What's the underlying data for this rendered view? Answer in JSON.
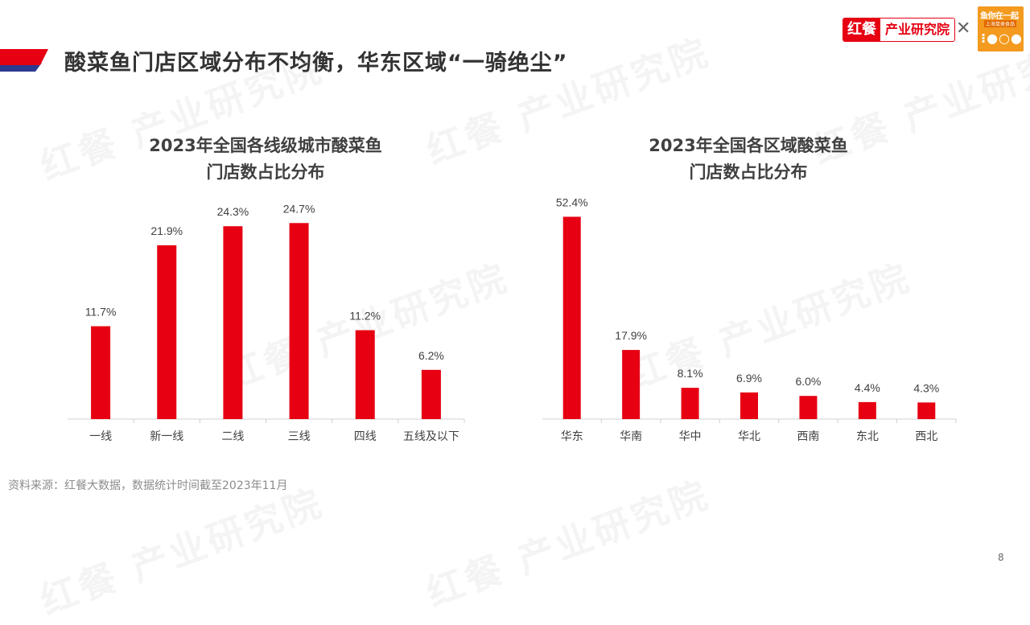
{
  "page": {
    "title": "酸菜鱼门店区域分布不均衡，华东区域“一骑绝尘”",
    "source": "资料来源：红餐大数据，数据统计时间截至2023年11月",
    "page_number": "8"
  },
  "brand": {
    "logo_red": "红餐",
    "logo_white": "产业研究院",
    "partner_text": "鱼你在一起",
    "partner_sub": "上海鼠类食品",
    "watermark_text": "红餐 产业研究院",
    "accent_color": "#e60012",
    "partner_color": "#f39a1f",
    "title_bar_colors": [
      "#e60012",
      "#2b3a8f"
    ]
  },
  "chart_data": [
    {
      "type": "bar",
      "title_line1": "2023年全国各线级城市酸菜鱼",
      "title_line2": "门店数占比分布",
      "categories": [
        "一线",
        "新一线",
        "二线",
        "三线",
        "四线",
        "五线及以下"
      ],
      "values": [
        11.7,
        21.9,
        24.3,
        24.7,
        11.2,
        6.2
      ],
      "value_labels": [
        "11.7%",
        "21.9%",
        "24.3%",
        "24.7%",
        "11.2%",
        "6.2%"
      ],
      "unit": "%",
      "ylim": [
        0,
        30
      ],
      "bar_color": "#e60012",
      "grid": false,
      "legend": "none"
    },
    {
      "type": "bar",
      "title_line1": "2023年全国各区域酸菜鱼",
      "title_line2": "门店数占比分布",
      "categories": [
        "华东",
        "华南",
        "华中",
        "华北",
        "西南",
        "东北",
        "西北"
      ],
      "values": [
        52.4,
        17.9,
        8.1,
        6.9,
        6.0,
        4.4,
        4.3
      ],
      "value_labels": [
        "52.4%",
        "17.9%",
        "8.1%",
        "6.9%",
        "6.0%",
        "4.4%",
        "4.3%"
      ],
      "unit": "%",
      "ylim": [
        0,
        55
      ],
      "bar_color": "#e60012",
      "grid": false,
      "legend": "none"
    }
  ]
}
